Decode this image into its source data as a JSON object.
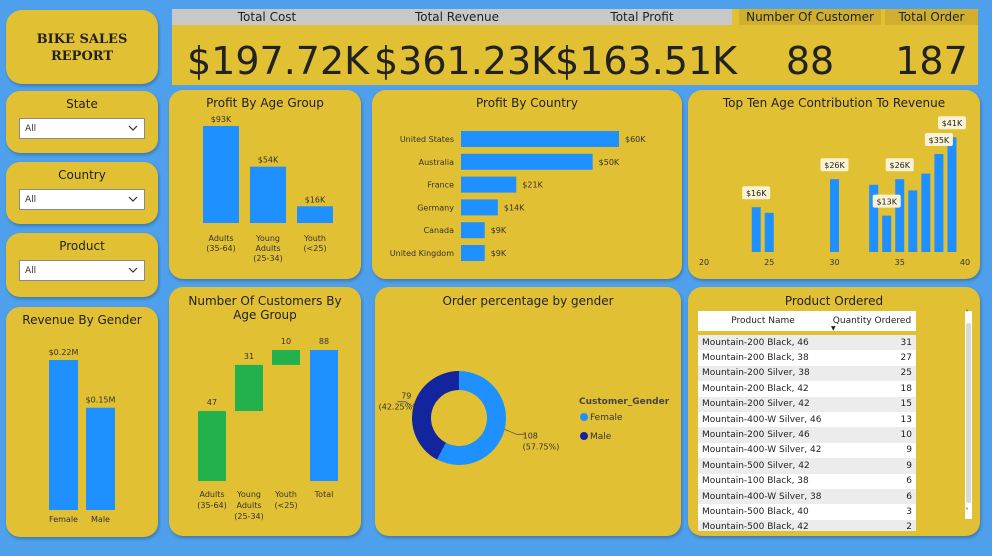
{
  "report_title": "BIKE SALES REPORT",
  "kpis": {
    "total_cost": {
      "label": "Total Cost",
      "value": "$197.72K"
    },
    "total_revenue": {
      "label": "Total Revenue",
      "value": "$361.23K"
    },
    "total_profit": {
      "label": "Total Profit",
      "value": "$163.51K"
    },
    "number_of_customer": {
      "label": "Number Of Customer",
      "value": "88"
    },
    "total_order": {
      "label": "Total Order",
      "value": "187"
    }
  },
  "slicers": {
    "state": {
      "label": "State",
      "selected": "All"
    },
    "country": {
      "label": "Country",
      "selected": "All"
    },
    "product": {
      "label": "Product",
      "selected": "All"
    }
  },
  "colors": {
    "background": "#4fa0ec",
    "card": "#e2c033",
    "bar_blue": "#1e90ff",
    "waterfall_green": "#22b14c",
    "male_navy": "#12259c"
  },
  "chart_data": [
    {
      "id": "profit_by_age_group",
      "type": "bar",
      "title": "Profit By Age Group",
      "categories": [
        [
          "Adults",
          "(35-64)"
        ],
        [
          "Young",
          "Adults",
          "(25-34)"
        ],
        [
          "Youth",
          "(<25)"
        ]
      ],
      "values": [
        93,
        54,
        16
      ],
      "data_labels": [
        "$93K",
        "$54K",
        "$16K"
      ]
    },
    {
      "id": "profit_by_country",
      "type": "bar",
      "orientation": "horizontal",
      "title": "Profit By Country",
      "categories": [
        "United States",
        "Australia",
        "France",
        "Germany",
        "Canada",
        "United Kingdom"
      ],
      "values": [
        60,
        50,
        21,
        14,
        9,
        9
      ],
      "data_labels": [
        "$60K",
        "$50K",
        "$21K",
        "$14K",
        "$9K",
        "$9K"
      ]
    },
    {
      "id": "top_ten_age_revenue",
      "type": "bar",
      "title": "Top Ten Age Contribution To Revenue",
      "x": [
        24,
        25,
        30,
        33,
        34,
        35,
        36,
        37,
        38,
        39
      ],
      "values": [
        16,
        14,
        26,
        24,
        13,
        26,
        22,
        28,
        35,
        41
      ],
      "data_labels": {
        "24": "$16K",
        "30": "$26K",
        "34": "$13K",
        "35": "$26K",
        "38": "$35K",
        "39": "$41K"
      },
      "xticks": [
        20,
        25,
        30,
        35,
        40
      ],
      "xlim": [
        20,
        40
      ],
      "ylim": [
        0,
        45
      ]
    },
    {
      "id": "revenue_by_gender",
      "type": "bar",
      "title": "Revenue By Gender",
      "categories": [
        "Female",
        "Male"
      ],
      "values": [
        0.22,
        0.15
      ],
      "data_labels": [
        "$0.22M",
        "$0.15M"
      ]
    },
    {
      "id": "customers_by_age_group",
      "type": "waterfall",
      "title": "Number Of Customers By Age Group",
      "categories": [
        [
          "Adults",
          "(35-64)"
        ],
        [
          "Young",
          "Adults",
          "(25-34)"
        ],
        [
          "Youth",
          "(<25)"
        ],
        [
          "Total"
        ]
      ],
      "values": [
        47,
        31,
        10,
        88
      ],
      "data_labels": [
        "47",
        "31",
        "10",
        "88"
      ]
    },
    {
      "id": "order_percentage_by_gender",
      "type": "pie",
      "donut": true,
      "title": "Order percentage by gender",
      "legend_title": "Customer_Gender",
      "legend_position": "right",
      "slices": [
        {
          "name": "Female",
          "value": 108,
          "label": "108",
          "pct_label": "(57.75%)",
          "color": "#1e90ff"
        },
        {
          "name": "Male",
          "value": 79,
          "label": "79",
          "pct_label": "(42.25%)",
          "color": "#12259c"
        }
      ]
    }
  ],
  "product_table": {
    "title": "Product Ordered",
    "headers": [
      "Product Name",
      "Quantity Ordered"
    ],
    "rows": [
      [
        "Mountain-200 Black, 46",
        "31"
      ],
      [
        "Mountain-200 Black, 38",
        "27"
      ],
      [
        "Mountain-200 Silver, 38",
        "25"
      ],
      [
        "Mountain-200 Black, 42",
        "18"
      ],
      [
        "Mountain-200 Silver, 42",
        "15"
      ],
      [
        "Mountain-400-W Silver, 46",
        "13"
      ],
      [
        "Mountain-200 Silver, 46",
        "10"
      ],
      [
        "Mountain-400-W Silver, 42",
        "9"
      ],
      [
        "Mountain-500 Silver, 42",
        "9"
      ],
      [
        "Mountain-100 Black, 38",
        "6"
      ],
      [
        "Mountain-400-W Silver, 38",
        "6"
      ],
      [
        "Mountain-500 Black, 40",
        "3"
      ],
      [
        "Mountain-500 Black, 42",
        "2"
      ]
    ]
  }
}
